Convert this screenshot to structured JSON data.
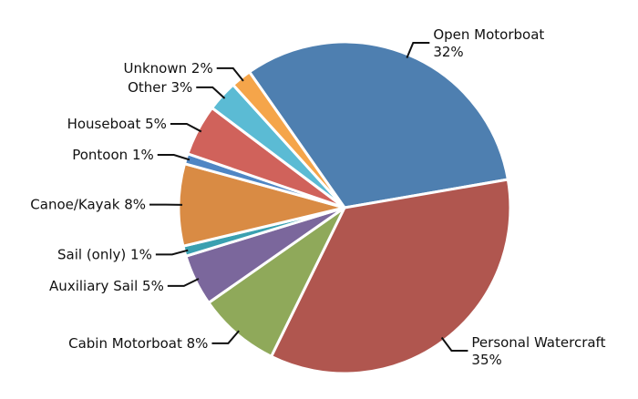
{
  "chart_data": {
    "type": "pie",
    "categories": [
      "Open Motorboat",
      "Personal Watercraft",
      "Cabin Motorboat",
      "Auxiliary Sail",
      "Sail (only)",
      "Canoe/Kayak",
      "Pontoon",
      "Houseboat",
      "Other",
      "Unknown"
    ],
    "values": [
      32,
      35,
      8,
      5,
      1,
      8,
      1,
      5,
      3,
      2
    ],
    "value_labels": [
      "32%",
      "35%",
      "8%",
      "5%",
      "1%",
      "8%",
      "1%",
      "5%",
      "3%",
      "2%"
    ],
    "colors": [
      "#4e7fb0",
      "#b0564f",
      "#8fa95a",
      "#7b679c",
      "#3aa0b0",
      "#d98b44",
      "#4f86c4",
      "#d0625b",
      "#5bbbd4",
      "#f5a54a"
    ]
  }
}
